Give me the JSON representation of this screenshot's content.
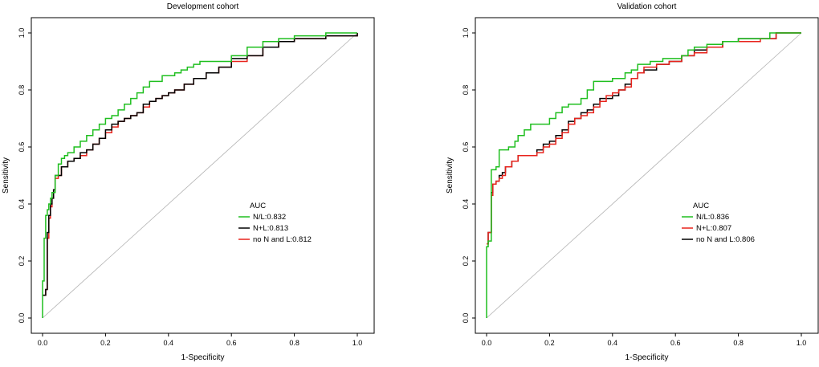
{
  "chart_data": [
    {
      "type": "line",
      "title": "Development cohort",
      "xlabel": "1-Specificity",
      "ylabel": "Sensitivity",
      "xlim": [
        0,
        1
      ],
      "ylim": [
        0,
        1
      ],
      "xticks": [
        "0.0",
        "0.2",
        "0.4",
        "0.6",
        "0.8",
        "1.0"
      ],
      "yticks": [
        "0.0",
        "0.2",
        "0.4",
        "0.6",
        "0.8",
        "1.0"
      ],
      "legend_title": "AUC",
      "reference_line": {
        "x": [
          0,
          1
        ],
        "y": [
          0,
          1
        ],
        "color": "#b3b3b3"
      },
      "series": [
        {
          "name": "N/L:0.832",
          "color": "#1fbf1f",
          "x": [
            0,
            0,
            0.005,
            0.005,
            0.01,
            0.01,
            0.015,
            0.02,
            0.025,
            0.03,
            0.04,
            0.05,
            0.06,
            0.07,
            0.08,
            0.1,
            0.12,
            0.14,
            0.16,
            0.18,
            0.2,
            0.22,
            0.24,
            0.26,
            0.28,
            0.3,
            0.32,
            0.34,
            0.36,
            0.38,
            0.4,
            0.42,
            0.44,
            0.46,
            0.48,
            0.5,
            0.55,
            0.6,
            0.65,
            0.7,
            0.75,
            0.8,
            0.85,
            0.9,
            1.0
          ],
          "y": [
            0,
            0.13,
            0.13,
            0.28,
            0.28,
            0.36,
            0.38,
            0.4,
            0.42,
            0.44,
            0.5,
            0.54,
            0.56,
            0.57,
            0.58,
            0.6,
            0.62,
            0.64,
            0.66,
            0.68,
            0.7,
            0.71,
            0.73,
            0.75,
            0.77,
            0.79,
            0.81,
            0.83,
            0.83,
            0.85,
            0.85,
            0.86,
            0.87,
            0.88,
            0.89,
            0.9,
            0.9,
            0.92,
            0.95,
            0.97,
            0.98,
            0.99,
            0.99,
            1.0,
            1.0
          ]
        },
        {
          "name": "N+L:0.813",
          "color": "#000000",
          "x": [
            0,
            0.01,
            0.015,
            0.02,
            0.025,
            0.03,
            0.035,
            0.04,
            0.05,
            0.06,
            0.08,
            0.1,
            0.12,
            0.14,
            0.16,
            0.18,
            0.2,
            0.22,
            0.24,
            0.26,
            0.28,
            0.3,
            0.32,
            0.34,
            0.36,
            0.38,
            0.4,
            0.42,
            0.45,
            0.48,
            0.52,
            0.56,
            0.6,
            0.65,
            0.7,
            0.75,
            0.8,
            0.86,
            0.9,
            1.0
          ],
          "y": [
            0.08,
            0.1,
            0.3,
            0.36,
            0.4,
            0.42,
            0.45,
            0.5,
            0.5,
            0.53,
            0.55,
            0.56,
            0.58,
            0.59,
            0.61,
            0.63,
            0.66,
            0.68,
            0.69,
            0.7,
            0.71,
            0.72,
            0.75,
            0.76,
            0.77,
            0.78,
            0.79,
            0.8,
            0.82,
            0.84,
            0.86,
            0.88,
            0.91,
            0.92,
            0.95,
            0.97,
            0.98,
            0.98,
            0.99,
            1.0
          ]
        },
        {
          "name": "no N and L:0.812",
          "color": "#e8231c",
          "x": [
            0,
            0.01,
            0.015,
            0.02,
            0.025,
            0.03,
            0.035,
            0.04,
            0.05,
            0.06,
            0.08,
            0.1,
            0.12,
            0.14,
            0.16,
            0.18,
            0.2,
            0.22,
            0.24,
            0.26,
            0.28,
            0.3,
            0.32,
            0.34,
            0.36,
            0.38,
            0.4,
            0.42,
            0.45,
            0.48,
            0.52,
            0.56,
            0.6,
            0.65,
            0.7,
            0.75,
            0.8,
            0.86,
            0.9,
            1.0
          ],
          "y": [
            0.08,
            0.1,
            0.28,
            0.35,
            0.39,
            0.42,
            0.45,
            0.49,
            0.5,
            0.53,
            0.55,
            0.56,
            0.57,
            0.59,
            0.61,
            0.63,
            0.65,
            0.67,
            0.69,
            0.7,
            0.71,
            0.72,
            0.74,
            0.76,
            0.77,
            0.78,
            0.79,
            0.8,
            0.82,
            0.84,
            0.86,
            0.88,
            0.9,
            0.92,
            0.95,
            0.97,
            0.98,
            0.98,
            0.99,
            1.0
          ]
        }
      ]
    },
    {
      "type": "line",
      "title": "Validation cohort",
      "xlabel": "1-Specificity",
      "ylabel": "Sensitivity",
      "xlim": [
        0,
        1
      ],
      "ylim": [
        0,
        1
      ],
      "xticks": [
        "0.0",
        "0.2",
        "0.4",
        "0.6",
        "0.8",
        "1.0"
      ],
      "yticks": [
        "0.0",
        "0.2",
        "0.4",
        "0.6",
        "0.8",
        "1.0"
      ],
      "legend_title": "AUC",
      "reference_line": {
        "x": [
          0,
          1
        ],
        "y": [
          0,
          1
        ],
        "color": "#b3b3b3"
      },
      "series": [
        {
          "name": "N/L:0.836",
          "color": "#1fbf1f",
          "x": [
            0,
            0,
            0.005,
            0.005,
            0.015,
            0.015,
            0.025,
            0.03,
            0.04,
            0.05,
            0.07,
            0.09,
            0.1,
            0.12,
            0.14,
            0.16,
            0.2,
            0.22,
            0.24,
            0.26,
            0.28,
            0.3,
            0.32,
            0.34,
            0.38,
            0.4,
            0.42,
            0.44,
            0.46,
            0.48,
            0.5,
            0.52,
            0.56,
            0.6,
            0.62,
            0.64,
            0.66,
            0.7,
            0.75,
            0.8,
            0.9,
            1.0
          ],
          "y": [
            0,
            0.25,
            0.25,
            0.27,
            0.27,
            0.52,
            0.52,
            0.53,
            0.59,
            0.59,
            0.6,
            0.62,
            0.64,
            0.66,
            0.68,
            0.68,
            0.7,
            0.72,
            0.74,
            0.75,
            0.75,
            0.77,
            0.8,
            0.83,
            0.83,
            0.84,
            0.84,
            0.86,
            0.87,
            0.89,
            0.89,
            0.9,
            0.91,
            0.91,
            0.92,
            0.94,
            0.95,
            0.96,
            0.97,
            0.98,
            1.0,
            1.0
          ]
        },
        {
          "name": "N+L:0.807",
          "color": "#e8231c",
          "x": [
            0,
            0.005,
            0.01,
            0.015,
            0.02,
            0.03,
            0.04,
            0.05,
            0.06,
            0.08,
            0.1,
            0.12,
            0.14,
            0.16,
            0.18,
            0.2,
            0.22,
            0.24,
            0.26,
            0.28,
            0.3,
            0.32,
            0.34,
            0.36,
            0.38,
            0.4,
            0.42,
            0.44,
            0.46,
            0.48,
            0.5,
            0.54,
            0.58,
            0.62,
            0.66,
            0.7,
            0.75,
            0.8,
            0.87,
            0.92,
            1.0
          ],
          "y": [
            0.26,
            0.3,
            0.3,
            0.43,
            0.47,
            0.48,
            0.49,
            0.5,
            0.53,
            0.55,
            0.57,
            0.57,
            0.57,
            0.58,
            0.6,
            0.61,
            0.63,
            0.65,
            0.68,
            0.7,
            0.71,
            0.72,
            0.74,
            0.76,
            0.78,
            0.79,
            0.8,
            0.81,
            0.84,
            0.86,
            0.88,
            0.89,
            0.9,
            0.92,
            0.93,
            0.95,
            0.97,
            0.97,
            0.98,
            1.0,
            1.0
          ]
        },
        {
          "name": "no N and L:0.806",
          "color": "#000000",
          "x": [
            0,
            0.005,
            0.01,
            0.015,
            0.02,
            0.03,
            0.04,
            0.05,
            0.06,
            0.08,
            0.1,
            0.12,
            0.14,
            0.16,
            0.18,
            0.2,
            0.22,
            0.24,
            0.26,
            0.28,
            0.3,
            0.32,
            0.34,
            0.36,
            0.38,
            0.4,
            0.42,
            0.44,
            0.46,
            0.48,
            0.5,
            0.54,
            0.58,
            0.62,
            0.66,
            0.7,
            0.75,
            0.8,
            0.87,
            0.92,
            1.0
          ],
          "y": [
            0.26,
            0.3,
            0.3,
            0.44,
            0.47,
            0.48,
            0.5,
            0.51,
            0.53,
            0.55,
            0.57,
            0.57,
            0.57,
            0.59,
            0.61,
            0.62,
            0.64,
            0.66,
            0.69,
            0.7,
            0.72,
            0.73,
            0.75,
            0.77,
            0.77,
            0.78,
            0.8,
            0.82,
            0.84,
            0.86,
            0.87,
            0.89,
            0.9,
            0.92,
            0.94,
            0.95,
            0.97,
            0.98,
            0.98,
            1.0,
            1.0
          ]
        }
      ]
    }
  ]
}
